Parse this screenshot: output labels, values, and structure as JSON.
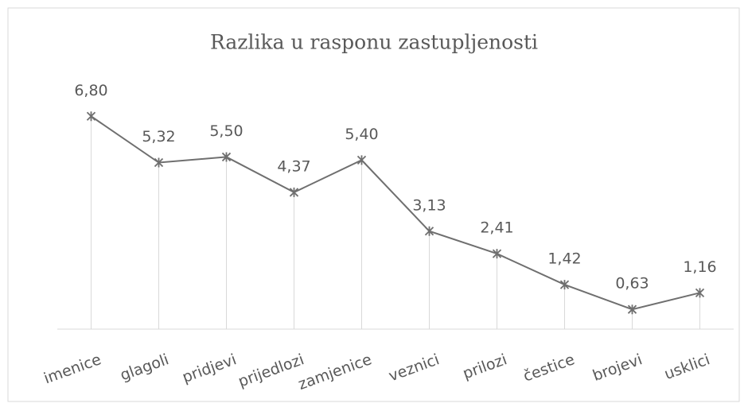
{
  "chart_data": {
    "type": "line",
    "title": "Razlika u rasponu zastupljenosti",
    "categories": [
      "imenice",
      "glagoli",
      "pridjevi",
      "prijedlozi",
      "zamjenice",
      "veznici",
      "prilozi",
      "čestice",
      "brojevi",
      "usklici"
    ],
    "values": [
      6.8,
      5.32,
      5.5,
      4.37,
      5.4,
      3.13,
      2.41,
      1.42,
      0.63,
      1.16
    ],
    "value_labels": [
      "6,80",
      "5,32",
      "5,50",
      "4,37",
      "5,40",
      "3,13",
      "2,41",
      "1,42",
      "0,63",
      "1,16"
    ],
    "color": "#6f6f6f",
    "ylim": [
      0,
      8
    ],
    "drop_lines": true
  }
}
